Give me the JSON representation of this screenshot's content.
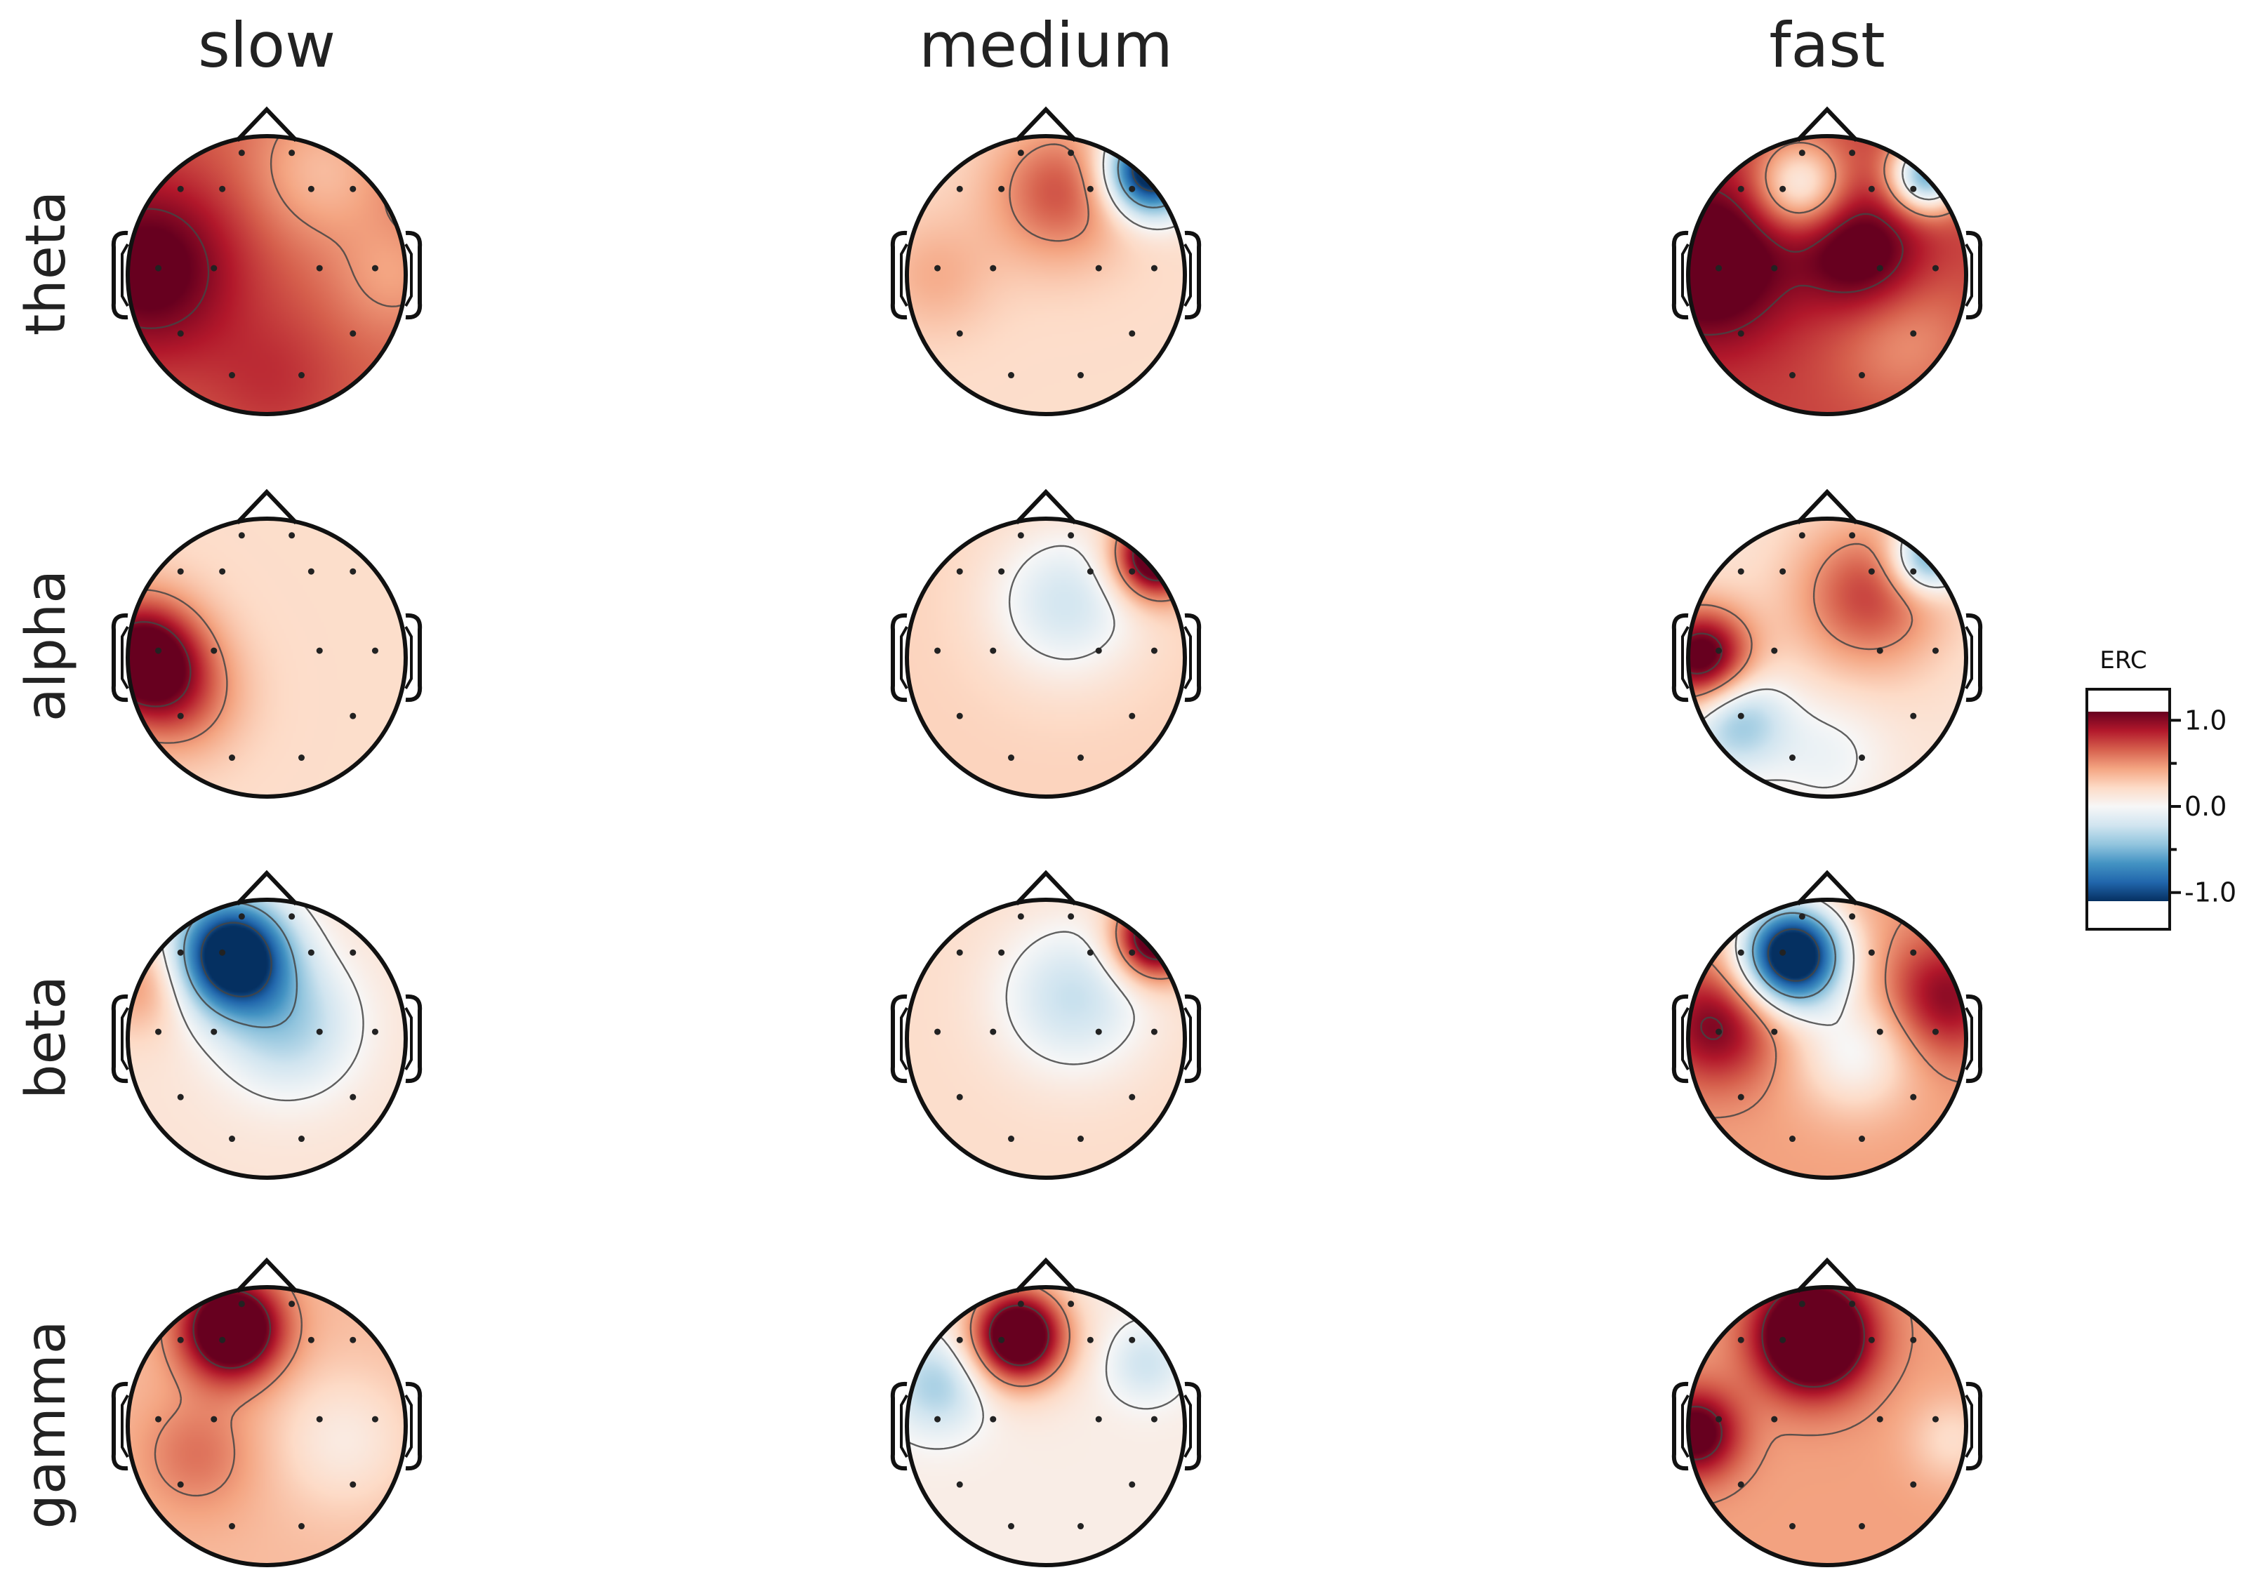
{
  "chart_data": {
    "type": "heatmap",
    "subtype": "topographic-head-maps",
    "columns": [
      "slow",
      "medium",
      "fast"
    ],
    "rows": [
      "theta",
      "alpha",
      "beta",
      "gamma"
    ],
    "colorbar": {
      "label": "ERC",
      "ticks": [
        "1.0",
        "0.0",
        "-1.0"
      ],
      "tick_values": [
        1.0,
        0.0,
        -1.0
      ],
      "range": [
        -1.25,
        1.25
      ],
      "colormap": "RdBu_r",
      "colors": {
        "high": "#67001f",
        "mid": "#f7f7f7",
        "low": "#053061"
      }
    },
    "sensors": [
      [
        -0.18,
        -0.88
      ],
      [
        0.18,
        -0.88
      ],
      [
        -0.62,
        -0.62
      ],
      [
        -0.32,
        -0.62
      ],
      [
        0.32,
        -0.62
      ],
      [
        0.62,
        -0.62
      ],
      [
        -0.78,
        -0.05
      ],
      [
        -0.38,
        -0.05
      ],
      [
        0.38,
        -0.05
      ],
      [
        0.78,
        -0.05
      ],
      [
        -0.62,
        0.42
      ],
      [
        0.62,
        0.42
      ],
      [
        -0.25,
        0.72
      ],
      [
        0.25,
        0.72
      ]
    ],
    "maps": {
      "theta": {
        "slow": {
          "base": 0.65,
          "blobs": [
            [
              -0.85,
              -0.05,
              0.45,
              0.55
            ],
            [
              0.4,
              -0.75,
              0.35,
              -0.3
            ],
            [
              0.05,
              0.75,
              0.35,
              0.15
            ],
            [
              0.9,
              0.0,
              0.3,
              -0.2
            ]
          ]
        },
        "medium": {
          "base": 0.2,
          "blobs": [
            [
              0.1,
              -0.6,
              0.35,
              0.5
            ],
            [
              0.75,
              -0.75,
              0.22,
              -1.6
            ],
            [
              -0.8,
              0.0,
              0.3,
              0.2
            ]
          ]
        },
        "fast": {
          "base": 0.75,
          "blobs": [
            [
              -0.85,
              -0.1,
              0.4,
              0.6
            ],
            [
              0.25,
              -0.15,
              0.3,
              0.5
            ],
            [
              -0.2,
              -0.65,
              0.22,
              -0.7
            ],
            [
              0.72,
              -0.72,
              0.18,
              -1.3
            ],
            [
              0.55,
              0.45,
              0.35,
              -0.25
            ]
          ]
        }
      },
      "alpha": {
        "slow": {
          "base": 0.2,
          "blobs": [
            [
              -0.9,
              0.0,
              0.3,
              1.1
            ],
            [
              -0.6,
              0.3,
              0.3,
              0.35
            ]
          ]
        },
        "medium": {
          "base": 0.25,
          "blobs": [
            [
              0.15,
              -0.4,
              0.38,
              -0.45
            ],
            [
              0.78,
              -0.72,
              0.2,
              1.2
            ]
          ]
        },
        "fast": {
          "base": 0.15,
          "blobs": [
            [
              -0.9,
              0.0,
              0.25,
              1.1
            ],
            [
              0.3,
              -0.45,
              0.38,
              0.6
            ],
            [
              -0.65,
              0.45,
              0.25,
              -0.6
            ],
            [
              0.72,
              -0.72,
              0.18,
              -0.9
            ],
            [
              0.0,
              0.7,
              0.3,
              -0.2
            ]
          ]
        }
      },
      "beta": {
        "slow": {
          "base": 0.15,
          "blobs": [
            [
              -0.25,
              -0.6,
              0.28,
              -1.6
            ],
            [
              0.15,
              -0.1,
              0.35,
              -0.5
            ],
            [
              -0.9,
              -0.4,
              0.25,
              0.35
            ]
          ]
        },
        "medium": {
          "base": 0.2,
          "blobs": [
            [
              0.2,
              -0.3,
              0.38,
              -0.45
            ],
            [
              0.78,
              -0.72,
              0.2,
              1.2
            ]
          ]
        },
        "fast": {
          "base": 0.45,
          "blobs": [
            [
              -0.25,
              -0.6,
              0.26,
              -1.9
            ],
            [
              -0.8,
              -0.1,
              0.3,
              0.6
            ],
            [
              0.85,
              -0.3,
              0.3,
              0.55
            ],
            [
              0.2,
              0.1,
              0.3,
              -0.45
            ]
          ]
        }
      },
      "gamma": {
        "slow": {
          "base": 0.35,
          "blobs": [
            [
              -0.25,
              -0.7,
              0.25,
              1.2
            ],
            [
              0.55,
              0.1,
              0.35,
              -0.25
            ],
            [
              -0.5,
              0.2,
              0.3,
              0.25
            ]
          ]
        },
        "medium": {
          "base": 0.08,
          "blobs": [
            [
              -0.2,
              -0.65,
              0.24,
              1.4
            ],
            [
              -0.78,
              -0.3,
              0.25,
              -0.45
            ],
            [
              0.72,
              -0.45,
              0.2,
              -0.3
            ]
          ]
        },
        "fast": {
          "base": 0.45,
          "blobs": [
            [
              -0.1,
              -0.65,
              0.28,
              1.3
            ],
            [
              -0.95,
              0.05,
              0.22,
              0.8
            ],
            [
              0.9,
              0.1,
              0.22,
              -0.25
            ]
          ]
        }
      }
    }
  }
}
